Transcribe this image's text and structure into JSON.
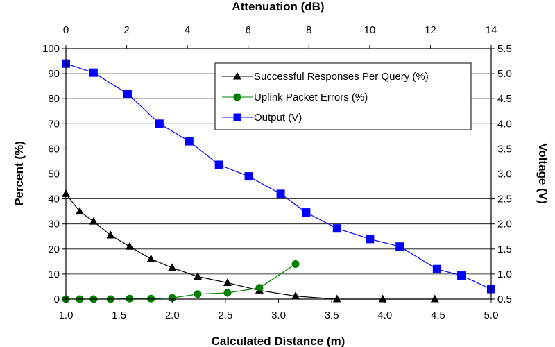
{
  "chart_data": {
    "type": "line",
    "title": "",
    "grid": true,
    "legend_position": "top-right",
    "axes": {
      "x_bottom": {
        "label": "Calculated Distance (m)",
        "range": [
          1.0,
          5.0
        ],
        "ticks": [
          "1.0",
          "1.5",
          "2.0",
          "2.5",
          "3.0",
          "3.5",
          "4.0",
          "4.5",
          "5.0"
        ]
      },
      "x_top": {
        "label": "Attenuation (dB)",
        "range": [
          0,
          14
        ],
        "ticks": [
          "0",
          "2",
          "4",
          "6",
          "8",
          "10",
          "12",
          "14"
        ]
      },
      "y_left": {
        "label": "Percent (%)",
        "range": [
          0,
          100
        ],
        "ticks": [
          "0",
          "10",
          "20",
          "30",
          "40",
          "50",
          "60",
          "70",
          "80",
          "90",
          "100"
        ]
      },
      "y_right": {
        "label": "Voltage (V)",
        "range": [
          0.5,
          5.5
        ],
        "ticks": [
          "0.5",
          "1.0",
          "1.5",
          "2.0",
          "2.5",
          "3.0",
          "3.5",
          "4.0",
          "4.5",
          "5.0",
          "5.5"
        ]
      }
    },
    "series": [
      {
        "name": "Successful Responses Per Query (%)",
        "axis": "left",
        "color": "#000000",
        "marker": "triangle",
        "x": [
          1.0,
          1.13,
          1.26,
          1.42,
          1.6,
          1.8,
          2.0,
          2.24,
          2.52,
          2.82,
          3.16,
          3.55,
          3.98,
          4.47
        ],
        "y": [
          42,
          35,
          31,
          25.5,
          21,
          16,
          12.5,
          9,
          6.5,
          3.5,
          1.2,
          0,
          0,
          0
        ]
      },
      {
        "name": "Uplink Packet Errors (%)",
        "axis": "left",
        "color": "#008000",
        "marker": "circle",
        "x": [
          1.0,
          1.13,
          1.26,
          1.42,
          1.6,
          1.8,
          2.0,
          2.24,
          2.52,
          2.82,
          3.16
        ],
        "y": [
          0,
          0,
          0,
          0,
          0.2,
          0.2,
          0.5,
          2,
          2.5,
          4.5,
          14
        ]
      },
      {
        "name": "Output (V)",
        "axis": "right",
        "color": "#0000ff",
        "marker": "square",
        "x": [
          1.0,
          1.26,
          1.58,
          1.88,
          2.16,
          2.44,
          2.72,
          3.02,
          3.26,
          3.55,
          3.86,
          4.14,
          4.49,
          4.72,
          5.0
        ],
        "y": [
          5.2,
          5.02,
          4.6,
          4.0,
          3.65,
          3.18,
          2.95,
          2.6,
          2.23,
          1.91,
          1.7,
          1.55,
          1.1,
          0.97,
          0.7
        ]
      }
    ]
  }
}
